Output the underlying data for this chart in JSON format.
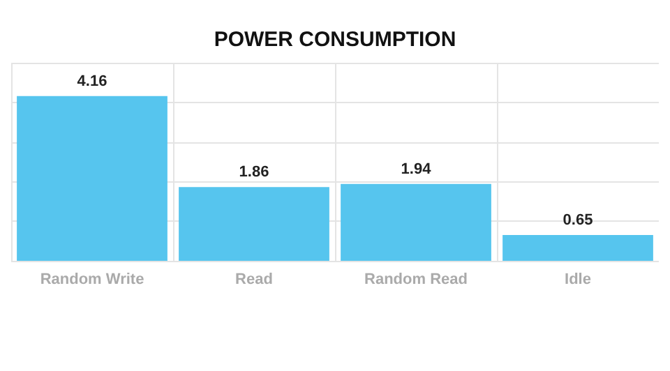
{
  "chart_data": {
    "type": "bar",
    "title": "POWER CONSUMPTION",
    "categories": [
      "Random Write",
      "Read",
      "Random Read",
      "Idle"
    ],
    "values": [
      4.16,
      1.86,
      1.94,
      0.65
    ],
    "color": "#56c5ee",
    "ylim": [
      0,
      5
    ],
    "yticks": [
      {
        "value": 0,
        "label": null
      },
      {
        "value": 1,
        "label": null
      },
      {
        "value": 2,
        "label": null
      },
      {
        "value": 3,
        "label": null
      },
      {
        "value": 4,
        "label": null
      },
      {
        "value": 5,
        "label": null
      }
    ],
    "grid": true,
    "tick_labels": "x",
    "data_labels": true
  }
}
